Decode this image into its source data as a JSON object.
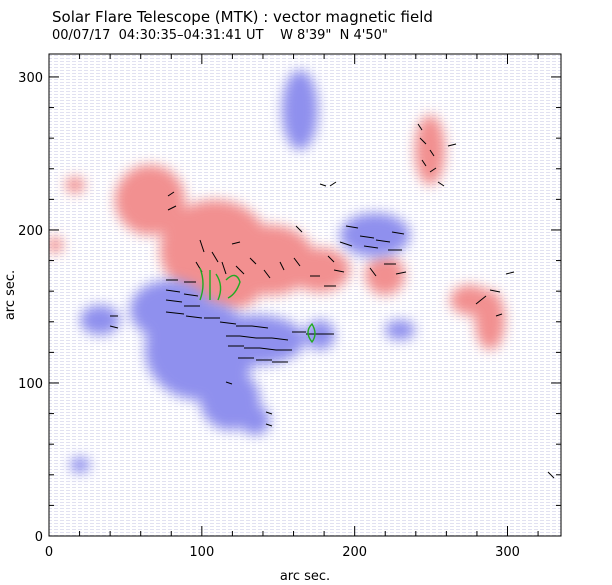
{
  "header": {
    "title": "Solar Flare Telescope (MTK) : vector magnetic field",
    "date": "00/07/17",
    "time_range": "04:30:35–04:31:41 UT",
    "position": "W 8'39\"  N 4'50\""
  },
  "axes": {
    "xlabel": "arc sec.",
    "ylabel": "arc sec.",
    "xlim": [
      0,
      335
    ],
    "ylim": [
      0,
      315
    ],
    "xticks": [
      "0",
      "100",
      "200",
      "300"
    ],
    "yticks": [
      "0",
      "100",
      "200",
      "300"
    ]
  },
  "colors": {
    "positive_polarity": "#f29090",
    "negative_polarity": "#8f90ee",
    "transverse_vectors": "#000000",
    "contour": "#22aa22"
  }
}
